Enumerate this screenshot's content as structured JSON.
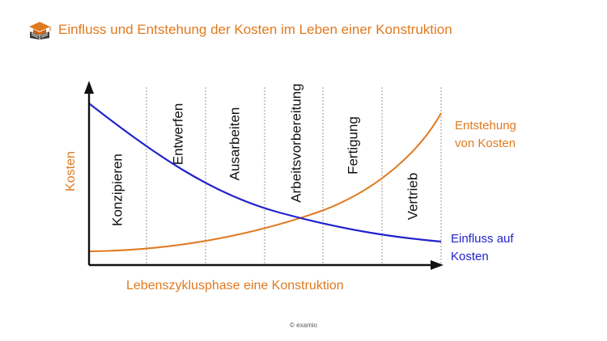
{
  "header": {
    "title": "Einfluss und Entstehung der Kosten im Leben einer Konstruktion",
    "logo_icon": "book-with-graduation-cap-icon"
  },
  "colors": {
    "accent": "#E07A1F",
    "influence": "#2222CC",
    "axis": "#111111",
    "divider": "#9a9a9a",
    "text": "#111111"
  },
  "diagram": {
    "y_axis_label": "Kosten",
    "x_axis_label": "Lebenszyklusphase eine Konstruktion",
    "phases": [
      "Konzipieren",
      "Entwerfen",
      "Ausarbeiten",
      "Arbeitsvorbereitung",
      "Fertigung",
      "Vertrieb"
    ],
    "curve_emergence_label": [
      "Entstehung",
      "von Kosten"
    ],
    "curve_influence_label": [
      "Einfluss auf",
      "Kosten"
    ]
  },
  "footer": {
    "copyright": "© examio"
  }
}
